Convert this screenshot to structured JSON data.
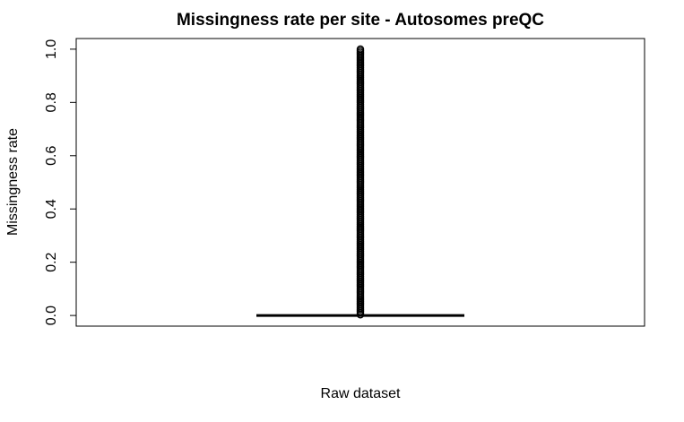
{
  "chart_data": {
    "type": "box",
    "title": "Missingness rate per site - Autosomes preQC",
    "xlabel": "Raw dataset",
    "ylabel": "Missingness rate",
    "ylim": [
      -0.04,
      1.04
    ],
    "yticks": [
      0.0,
      0.2,
      0.4,
      0.6,
      0.8,
      1.0
    ],
    "ytick_labels": [
      "0.0",
      "0.2",
      "0.4",
      "0.6",
      "0.8",
      "1.0"
    ],
    "series": [
      {
        "box": {
          "min": 0.0,
          "q1": 0.0,
          "median": 0.0,
          "q3": 0.0,
          "max": 0.0
        },
        "outliers_range": [
          0.003,
          1.0
        ]
      }
    ],
    "grid": false
  }
}
